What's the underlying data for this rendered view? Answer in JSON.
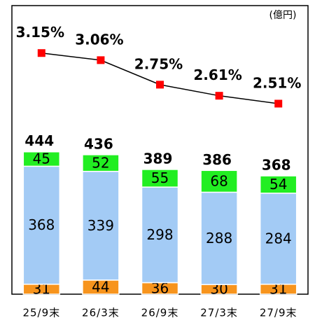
{
  "chart_data": {
    "type": "bar",
    "stacked": true,
    "unit_label": "(億円)",
    "categories": [
      "25/9末",
      "26/3末",
      "26/9末",
      "27/3末",
      "27/9末"
    ],
    "series": [
      {
        "type": "bar",
        "color": "#f7941d",
        "values": [
          31,
          44,
          36,
          30,
          31
        ]
      },
      {
        "type": "bar",
        "color": "#a3cbf5",
        "values": [
          368,
          339,
          298,
          288,
          284
        ]
      },
      {
        "type": "bar",
        "color": "#22ee22",
        "values": [
          45,
          52,
          55,
          68,
          54
        ]
      },
      {
        "type": "line",
        "axis": "y2",
        "color": "#000000",
        "marker_color": "#ff0000",
        "values": [
          3.15,
          3.06,
          2.75,
          2.61,
          2.51
        ],
        "value_labels": [
          "3.15%",
          "3.06%",
          "2.75%",
          "2.61%",
          "2.51%"
        ]
      }
    ],
    "totals": [
      444,
      436,
      389,
      386,
      368
    ],
    "ylim": [
      0,
      900
    ],
    "y2lim": [
      0.1,
      3.75
    ]
  }
}
